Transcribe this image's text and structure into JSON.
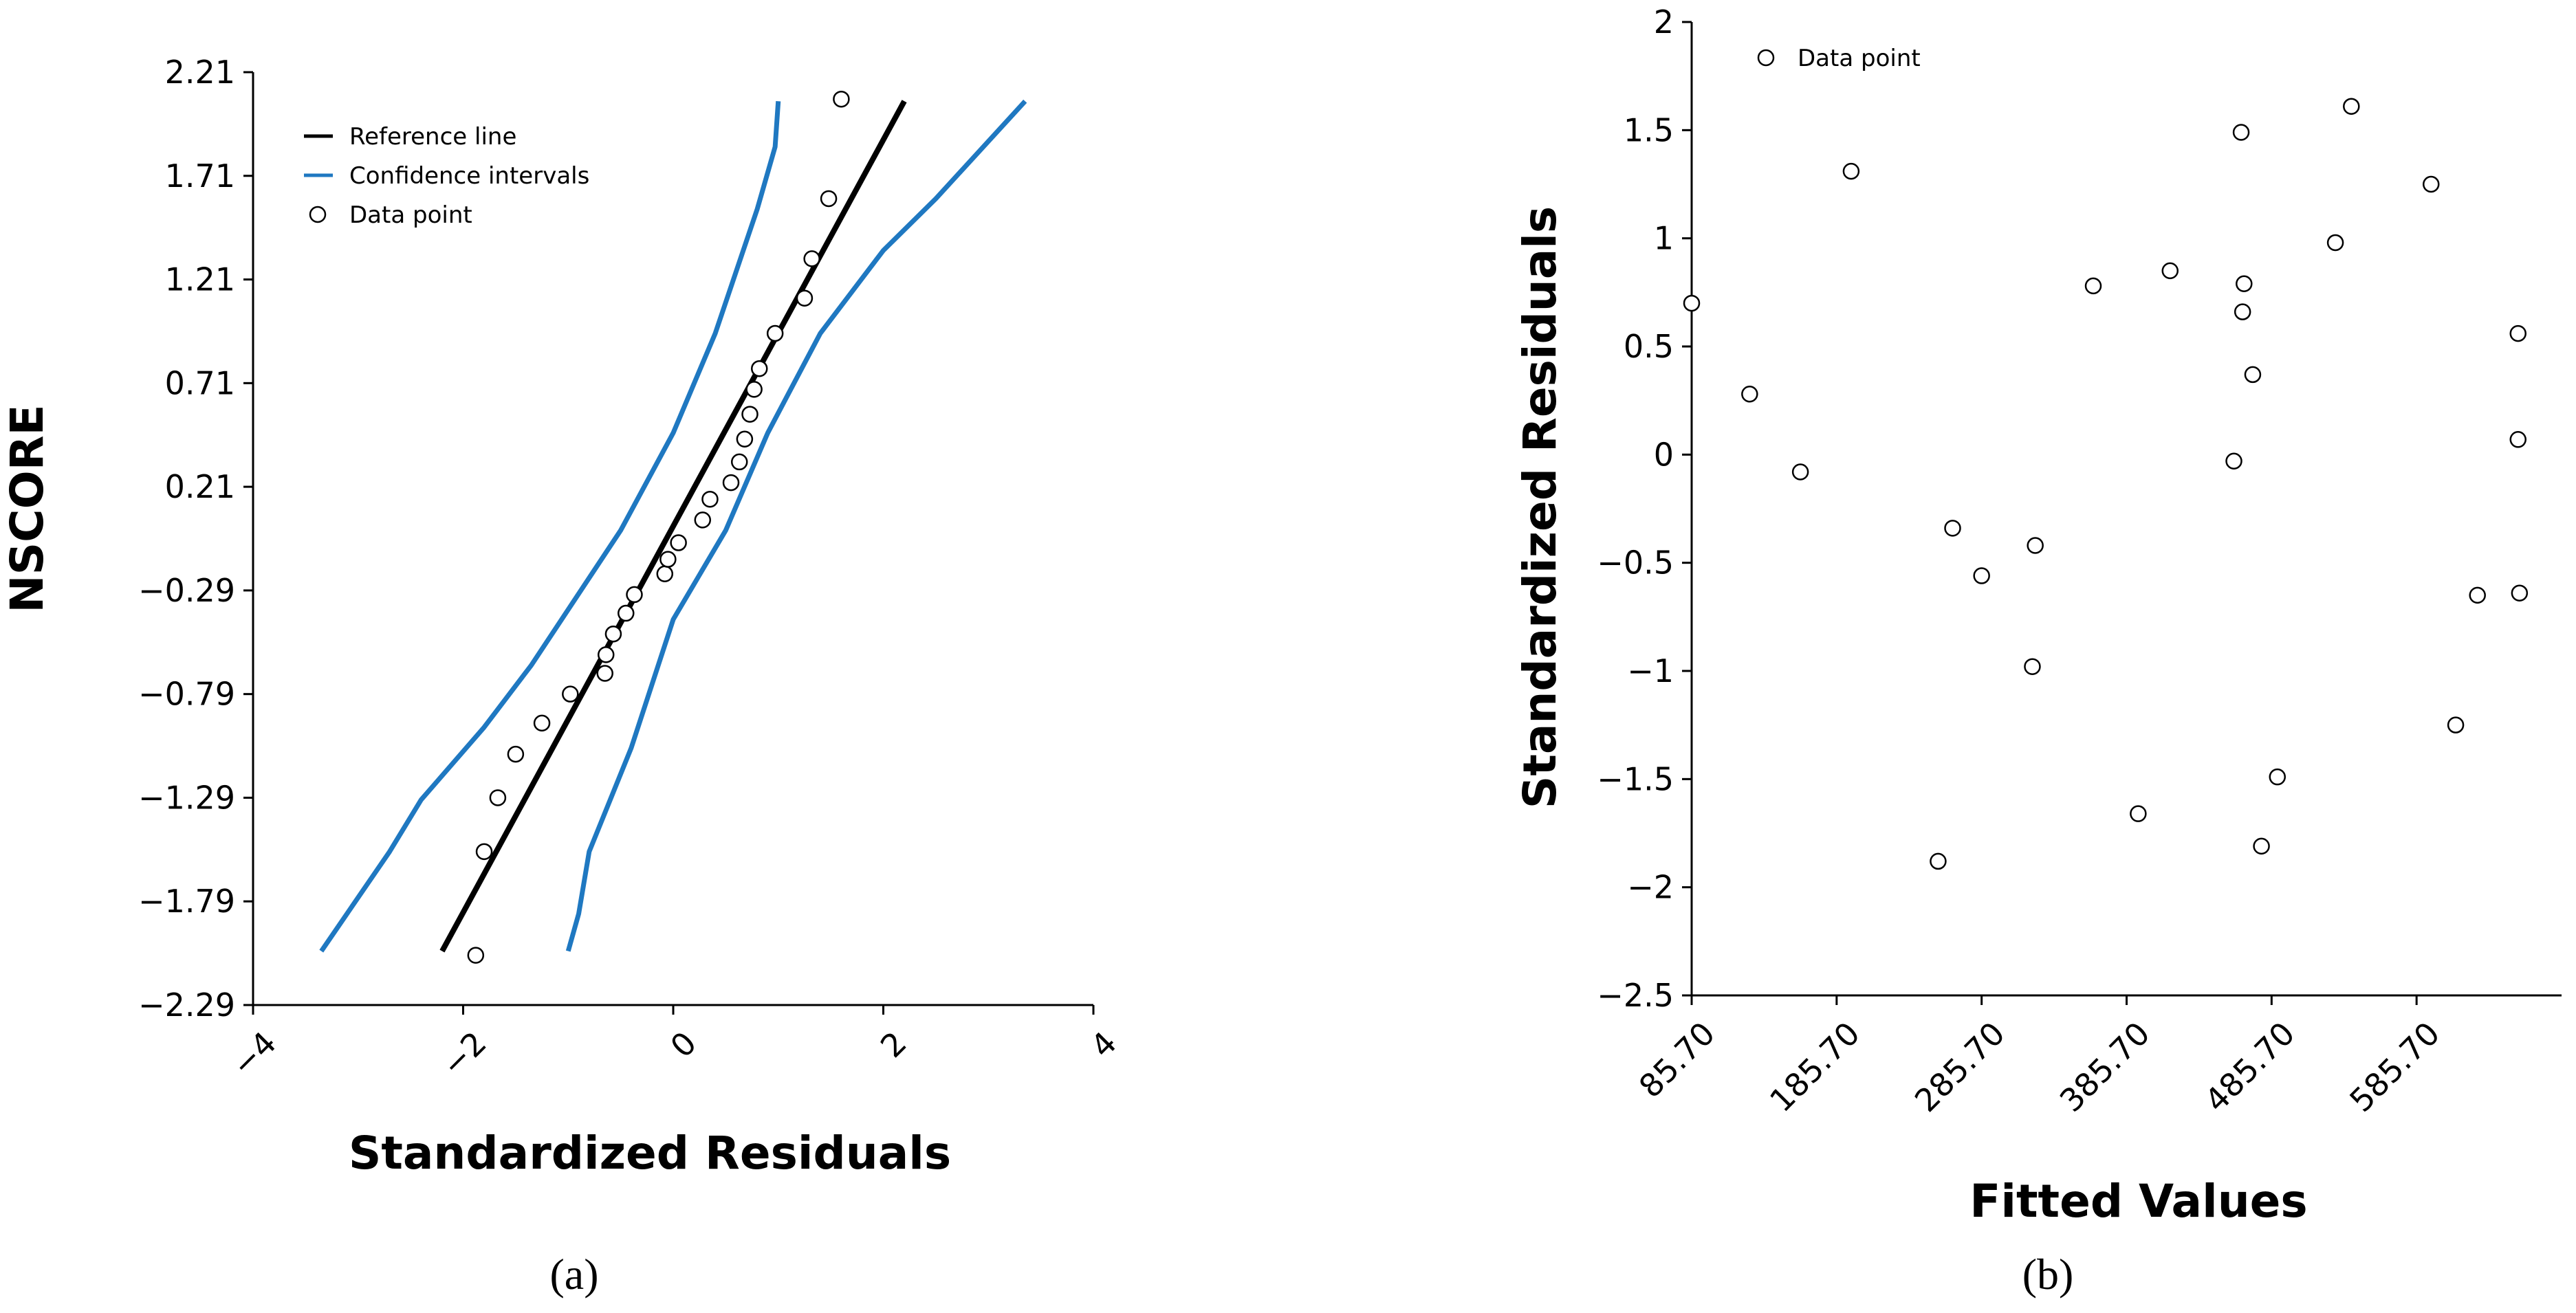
{
  "chart_data": [
    {
      "panel_label": "(a)",
      "type": "scatter",
      "xlabel": "Standardized Residuals",
      "ylabel": "NSCORE",
      "xlim": [
        -4,
        4
      ],
      "ylim": [
        -2.29,
        2.21
      ],
      "xticks": [
        "-4",
        "-2",
        "0",
        "2",
        "4"
      ],
      "yticks": [
        "2.21",
        "1.71",
        "1.21",
        "0.71",
        "0.21",
        "-0.29",
        "-0.79",
        "-1.29",
        "-1.79",
        "-2.29"
      ],
      "legend": {
        "position": "top-left",
        "entries": [
          "Reference line",
          "Confidence intervals",
          "Data point"
        ]
      },
      "series": [
        {
          "name": "Reference line",
          "kind": "line",
          "color": "#000000",
          "x": [
            -2.2,
            2.2
          ],
          "y": [
            -2.03,
            2.07
          ]
        },
        {
          "name": "Confidence intervals",
          "kind": "line",
          "color": "#1f78c1",
          "x": [
            -3.35,
            -2.7,
            -2.4,
            -1.8,
            -1.35,
            -0.5,
            0.0,
            0.4,
            0.8,
            0.97,
            1.0
          ],
          "y": [
            -2.03,
            -1.55,
            -1.3,
            -0.95,
            -0.65,
            0.0,
            0.47,
            0.95,
            1.55,
            1.85,
            2.07
          ]
        },
        {
          "name": "Confidence intervals",
          "kind": "line",
          "color": "#1f78c1",
          "x": [
            -1.0,
            -0.9,
            -0.8,
            -0.4,
            0.0,
            0.5,
            0.9,
            1.4,
            2.0,
            2.5,
            3.35
          ],
          "y": [
            -2.03,
            -1.85,
            -1.55,
            -1.05,
            -0.43,
            0.0,
            0.47,
            0.95,
            1.35,
            1.6,
            2.07
          ]
        },
        {
          "name": "Data point",
          "kind": "points",
          "color": "#000000",
          "x": [
            -1.88,
            -1.8,
            -1.67,
            -1.5,
            -1.25,
            -0.98,
            -0.65,
            -0.64,
            -0.57,
            -0.45,
            -0.37,
            -0.08,
            -0.05,
            0.05,
            0.28,
            0.35,
            0.55,
            0.63,
            0.68,
            0.73,
            0.77,
            0.82,
            0.97,
            1.25,
            1.32,
            1.48,
            1.6
          ],
          "y": [
            -2.05,
            -1.55,
            -1.29,
            -1.08,
            -0.93,
            -0.79,
            -0.69,
            -0.6,
            -0.5,
            -0.4,
            -0.31,
            -0.21,
            -0.14,
            -0.06,
            0.05,
            0.15,
            0.23,
            0.33,
            0.44,
            0.56,
            0.68,
            0.78,
            0.95,
            1.12,
            1.31,
            1.6,
            2.08
          ]
        }
      ]
    },
    {
      "panel_label": "(b)",
      "type": "scatter",
      "xlabel": "Fitted Values",
      "ylabel": "Standardized Residuals",
      "xlim": [
        85.7,
        685.7
      ],
      "ylim": [
        -2.5,
        2
      ],
      "xticks": [
        "85.70",
        "185.70",
        "285.70",
        "385.70",
        "485.70",
        "585.70"
      ],
      "yticks": [
        "2",
        "1.5",
        "1",
        "0.5",
        "0",
        "-0.5",
        "-1",
        "-1.5",
        "-2",
        "-2.5"
      ],
      "legend": {
        "position": "top-left",
        "entries": [
          "Data point"
        ]
      },
      "series": [
        {
          "name": "Data point",
          "kind": "points",
          "color": "#000000",
          "x": [
            85.7,
            125.7,
            160.7,
            195.7,
            255.7,
            265.7,
            285.7,
            320.7,
            322.7,
            362.7,
            393.7,
            415.7,
            459.7,
            464.7,
            465.7,
            466.7,
            472.7,
            478.7,
            489.7,
            529.7,
            540.7,
            595.7,
            612.7,
            627.7,
            655.7,
            655.7,
            656.7
          ],
          "y": [
            0.7,
            0.28,
            -0.08,
            1.31,
            -1.88,
            -0.34,
            -0.56,
            -0.98,
            -0.42,
            0.78,
            -1.66,
            0.85,
            -0.03,
            1.49,
            0.66,
            0.79,
            0.37,
            -1.81,
            -1.49,
            0.98,
            1.61,
            1.25,
            -1.25,
            -0.65,
            0.56,
            0.07,
            -0.64
          ]
        }
      ]
    }
  ]
}
